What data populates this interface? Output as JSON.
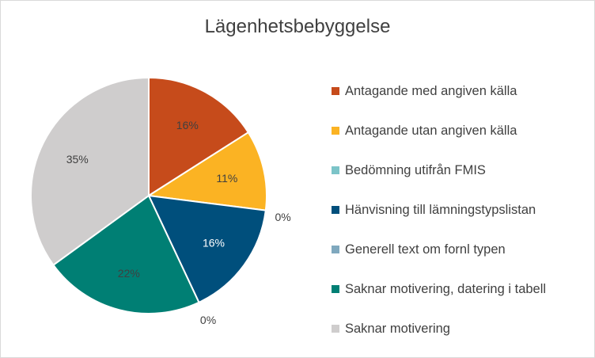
{
  "chart_data": {
    "type": "pie",
    "title": "Lägenhetsbebyggelse",
    "legend_position": "right",
    "slices": [
      {
        "name": "Antagande med angiven källa",
        "value": 16,
        "label": "16%",
        "color": "#c64b1b",
        "label_color": "#404040"
      },
      {
        "name": "Antagande utan angiven källa",
        "value": 11,
        "label": "11%",
        "color": "#fbb323",
        "label_color": "#404040"
      },
      {
        "name": "Bedömning utifrån FMIS",
        "value": 0,
        "label": "0%",
        "color": "#7cc4c8",
        "label_color": "#404040"
      },
      {
        "name": "Hänvisning till lämningstypslistan",
        "value": 16,
        "label": "16%",
        "color": "#004f7c",
        "label_color": "#ffffff"
      },
      {
        "name": "Generell text om fornl typen",
        "value": 0,
        "label": "0%",
        "color": "#7fa8be",
        "label_color": "#404040"
      },
      {
        "name": "Saknar motivering, datering i tabell",
        "value": 22,
        "label": "22%",
        "color": "#007f74",
        "label_color": "#404040"
      },
      {
        "name": "Saknar motivering",
        "value": 35,
        "label": "35%",
        "color": "#cfcdcd",
        "label_color": "#404040"
      }
    ]
  }
}
